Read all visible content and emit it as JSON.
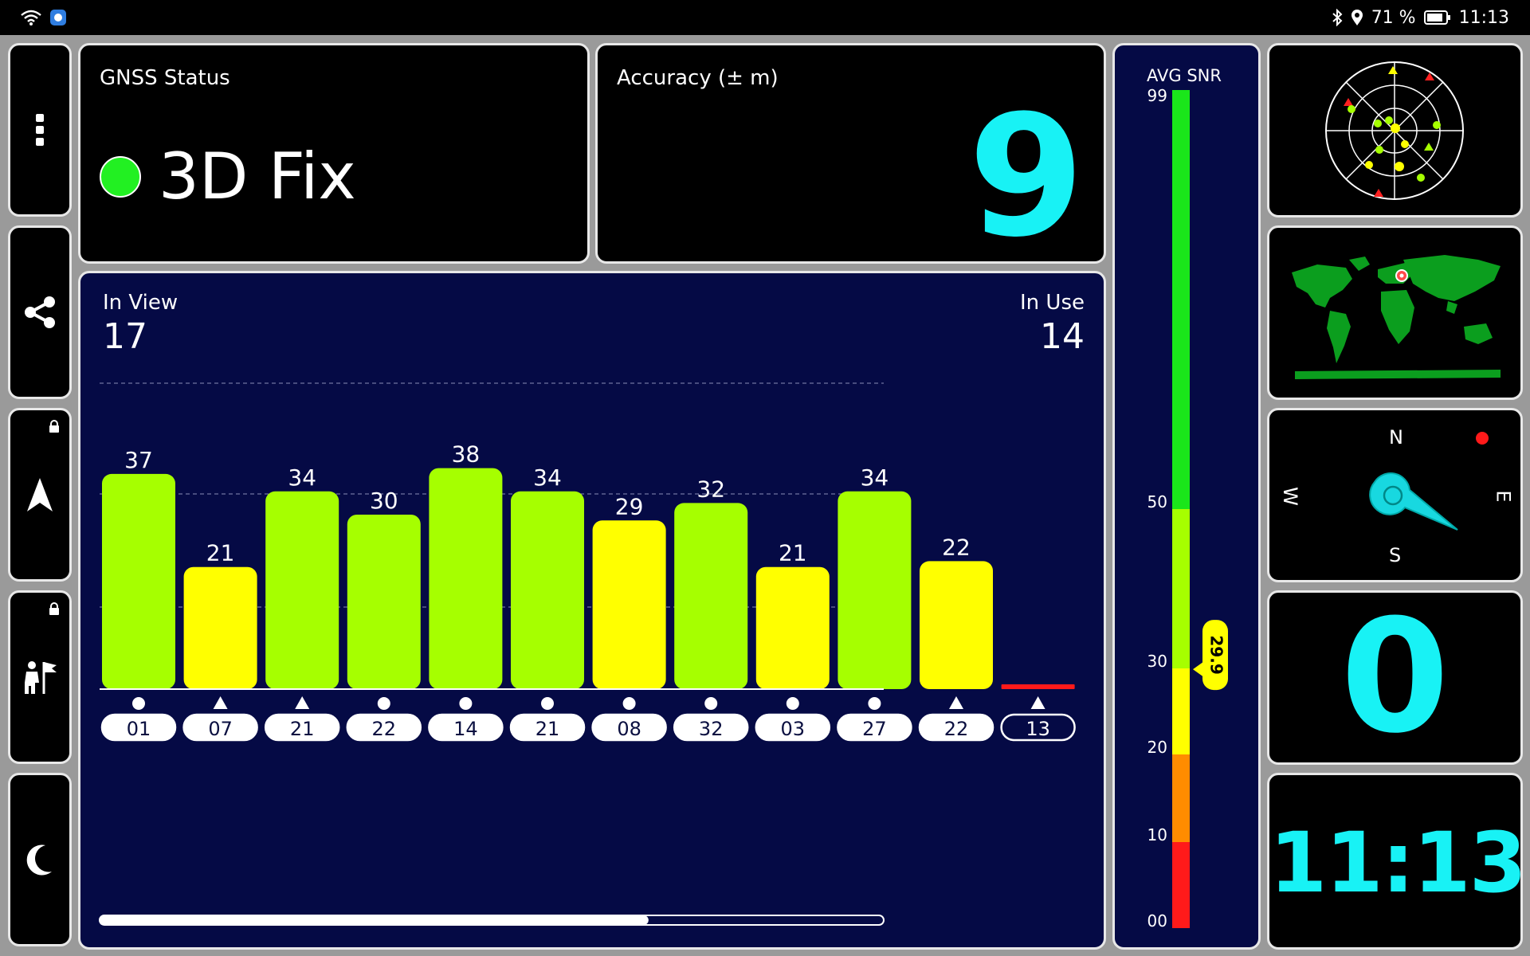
{
  "status_bar": {
    "battery_text": "71 %",
    "time": "11:13",
    "icons": [
      "wifi-icon",
      "app-icon",
      "bluetooth-icon",
      "location-icon",
      "battery-icon"
    ]
  },
  "sidebar": {
    "buttons": [
      {
        "name": "menu-button",
        "icon": "more-vertical-icon"
      },
      {
        "name": "share-button",
        "icon": "share-icon"
      },
      {
        "name": "navigation-button",
        "icon": "navigation-arrow-icon",
        "locked": true
      },
      {
        "name": "waypoint-button",
        "icon": "person-flag-icon",
        "locked": true
      },
      {
        "name": "night-mode-button",
        "icon": "moon-icon"
      }
    ]
  },
  "gnss": {
    "label": "GNSS Status",
    "fix": "3D Fix",
    "fix_color": "#22f022"
  },
  "accuracy": {
    "label": "Accuracy (± m)",
    "value": "9"
  },
  "satellites": {
    "in_view_label": "In View",
    "in_view": "17",
    "in_use_label": "In Use",
    "in_use": "14",
    "scroll_position": 0.7
  },
  "chart_data": {
    "type": "bar",
    "categories": [
      "01",
      "07",
      "21",
      "22",
      "14",
      "21",
      "08",
      "32",
      "03",
      "27",
      "22",
      "13"
    ],
    "values": [
      37,
      21,
      34,
      30,
      38,
      34,
      29,
      32,
      21,
      34,
      22,
      0
    ],
    "markers": [
      "circle",
      "triangle",
      "triangle",
      "circle",
      "circle",
      "circle",
      "circle",
      "circle",
      "circle",
      "circle",
      "triangle",
      "triangle"
    ],
    "in_use": [
      true,
      true,
      true,
      true,
      true,
      true,
      true,
      true,
      true,
      true,
      true,
      false
    ],
    "colors": [
      "#a6ff00",
      "#ffff00",
      "#a6ff00",
      "#a6ff00",
      "#a6ff00",
      "#a6ff00",
      "#ffff00",
      "#a6ff00",
      "#ffff00",
      "#a6ff00",
      "#ffff00",
      "#ff1a1a"
    ],
    "ylim": [
      0,
      70
    ]
  },
  "snr": {
    "label": "AVG SNR",
    "top_label": "99",
    "ticks": [
      "50",
      "30",
      "20",
      "10",
      "00"
    ],
    "value": "29.9",
    "value_number": 29.9,
    "colors": {
      "red": "#ff1a1a",
      "orange": "#ff8c00",
      "yellow": "#ffff00",
      "yellowgreen": "#a6ff00",
      "green": "#1ae61a"
    }
  },
  "compass": {
    "n": "N",
    "e": "E",
    "s": "S",
    "w": "W"
  },
  "speed": {
    "value": "0"
  },
  "clock": {
    "value": "11:13"
  },
  "accent_color": "#18f2f5"
}
